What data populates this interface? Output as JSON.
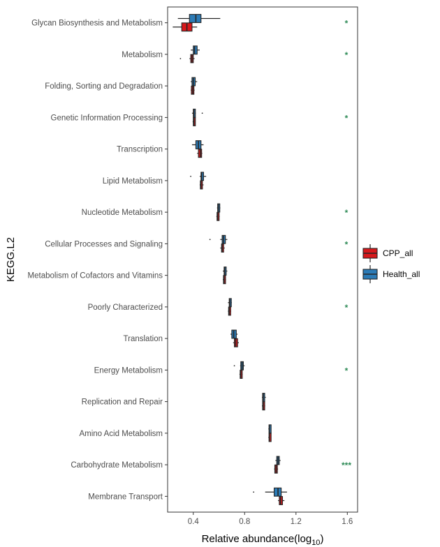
{
  "chart_data": {
    "type": "boxplot",
    "ylabel": "KEGG.L2",
    "xlabel_main": "Relative abundance(log",
    "xlabel_sub": "10",
    "xlabel_close": ")",
    "xlim": [
      0.2,
      1.68
    ],
    "xticks": [
      "0.4",
      "0.8",
      "1.2",
      "1.6"
    ],
    "xtick_values": [
      0.4,
      0.8,
      1.2,
      1.6
    ],
    "grid": false,
    "legend_position": "right",
    "significance_color": "#2e8b57",
    "series": [
      {
        "name": "CPP_all",
        "color": "#d7191c"
      },
      {
        "name": "Health_all",
        "color": "#2c7bb6"
      }
    ],
    "categories": [
      {
        "label": "Glycan Biosynthesis and Metabolism",
        "sig": "*",
        "CPP_all": {
          "min": 0.24,
          "q1": 0.31,
          "median": 0.35,
          "q3": 0.39,
          "max": 0.43,
          "outliers": []
        },
        "Health_all": {
          "min": 0.28,
          "q1": 0.37,
          "median": 0.42,
          "q3": 0.46,
          "max": 0.61,
          "outliers": []
        }
      },
      {
        "label": "Metabolism",
        "sig": "*",
        "CPP_all": {
          "min": 0.37,
          "q1": 0.38,
          "median": 0.39,
          "q3": 0.4,
          "max": 0.41,
          "outliers": [
            0.3
          ]
        },
        "Health_all": {
          "min": 0.38,
          "q1": 0.4,
          "median": 0.41,
          "q3": 0.43,
          "max": 0.45,
          "outliers": []
        }
      },
      {
        "label": "Folding, Sorting and Degradation",
        "sig": "",
        "CPP_all": {
          "min": 0.38,
          "q1": 0.385,
          "median": 0.395,
          "q3": 0.405,
          "max": 0.41,
          "outliers": []
        },
        "Health_all": {
          "min": 0.38,
          "q1": 0.39,
          "median": 0.4,
          "q3": 0.415,
          "max": 0.43,
          "outliers": []
        }
      },
      {
        "label": "Genetic Information Processing",
        "sig": "*",
        "CPP_all": {
          "min": 0.395,
          "q1": 0.4,
          "median": 0.405,
          "q3": 0.41,
          "max": 0.415,
          "outliers": []
        },
        "Health_all": {
          "min": 0.39,
          "q1": 0.4,
          "median": 0.405,
          "q3": 0.415,
          "max": 0.42,
          "outliers": [
            0.47
          ]
        }
      },
      {
        "label": "Transcription",
        "sig": "",
        "CPP_all": {
          "min": 0.43,
          "q1": 0.44,
          "median": 0.455,
          "q3": 0.465,
          "max": 0.47,
          "outliers": []
        },
        "Health_all": {
          "min": 0.39,
          "q1": 0.42,
          "median": 0.44,
          "q3": 0.46,
          "max": 0.48,
          "outliers": []
        }
      },
      {
        "label": "Lipid Metabolism",
        "sig": "",
        "CPP_all": {
          "min": 0.45,
          "q1": 0.455,
          "median": 0.46,
          "q3": 0.47,
          "max": 0.48,
          "outliers": []
        },
        "Health_all": {
          "min": 0.45,
          "q1": 0.46,
          "median": 0.465,
          "q3": 0.48,
          "max": 0.5,
          "outliers": [
            0.38
          ]
        }
      },
      {
        "label": "Nucleotide Metabolism",
        "sig": "*",
        "CPP_all": {
          "min": 0.58,
          "q1": 0.585,
          "median": 0.59,
          "q3": 0.6,
          "max": 0.605,
          "outliers": []
        },
        "Health_all": {
          "min": 0.585,
          "q1": 0.59,
          "median": 0.595,
          "q3": 0.605,
          "max": 0.61,
          "outliers": []
        }
      },
      {
        "label": "Cellular Processes and Signaling",
        "sig": "*",
        "CPP_all": {
          "min": 0.61,
          "q1": 0.62,
          "median": 0.625,
          "q3": 0.635,
          "max": 0.645,
          "outliers": []
        },
        "Health_all": {
          "min": 0.61,
          "q1": 0.625,
          "median": 0.635,
          "q3": 0.65,
          "max": 0.665,
          "outliers": [
            0.53
          ]
        }
      },
      {
        "label": "Metabolism of Cofactors and Vitamins",
        "sig": "",
        "CPP_all": {
          "min": 0.63,
          "q1": 0.635,
          "median": 0.64,
          "q3": 0.65,
          "max": 0.655,
          "outliers": []
        },
        "Health_all": {
          "min": 0.63,
          "q1": 0.64,
          "median": 0.645,
          "q3": 0.655,
          "max": 0.665,
          "outliers": []
        }
      },
      {
        "label": "Poorly Characterized",
        "sig": "*",
        "CPP_all": {
          "min": 0.67,
          "q1": 0.675,
          "median": 0.68,
          "q3": 0.69,
          "max": 0.695,
          "outliers": []
        },
        "Health_all": {
          "min": 0.67,
          "q1": 0.68,
          "median": 0.685,
          "q3": 0.695,
          "max": 0.7,
          "outliers": []
        }
      },
      {
        "label": "Translation",
        "sig": "",
        "CPP_all": {
          "min": 0.71,
          "q1": 0.72,
          "median": 0.73,
          "q3": 0.745,
          "max": 0.755,
          "outliers": []
        },
        "Health_all": {
          "min": 0.69,
          "q1": 0.7,
          "median": 0.715,
          "q3": 0.735,
          "max": 0.745,
          "outliers": []
        }
      },
      {
        "label": "Energy Metabolism",
        "sig": "*",
        "CPP_all": {
          "min": 0.76,
          "q1": 0.765,
          "median": 0.77,
          "q3": 0.78,
          "max": 0.785,
          "outliers": []
        },
        "Health_all": {
          "min": 0.765,
          "q1": 0.77,
          "median": 0.78,
          "q3": 0.79,
          "max": 0.8,
          "outliers": [
            0.72
          ]
        }
      },
      {
        "label": "Replication and Repair",
        "sig": "",
        "CPP_all": {
          "min": 0.935,
          "q1": 0.94,
          "median": 0.945,
          "q3": 0.955,
          "max": 0.96,
          "outliers": []
        },
        "Health_all": {
          "min": 0.935,
          "q1": 0.94,
          "median": 0.945,
          "q3": 0.955,
          "max": 0.965,
          "outliers": []
        }
      },
      {
        "label": "Amino Acid Metabolism",
        "sig": "",
        "CPP_all": {
          "min": 0.985,
          "q1": 0.99,
          "median": 0.993,
          "q3": 0.998,
          "max": 1.0,
          "outliers": []
        },
        "Health_all": {
          "min": 0.985,
          "q1": 0.99,
          "median": 0.993,
          "q3": 0.998,
          "max": 1.0,
          "outliers": []
        }
      },
      {
        "label": "Carbohydrate Metabolism",
        "sig": "***",
        "CPP_all": {
          "min": 1.03,
          "q1": 1.035,
          "median": 1.045,
          "q3": 1.055,
          "max": 1.06,
          "outliers": []
        },
        "Health_all": {
          "min": 1.04,
          "q1": 1.05,
          "median": 1.06,
          "q3": 1.07,
          "max": 1.08,
          "outliers": []
        }
      },
      {
        "label": "Membrane Transport",
        "sig": "",
        "CPP_all": {
          "min": 1.06,
          "q1": 1.07,
          "median": 1.08,
          "q3": 1.095,
          "max": 1.11,
          "outliers": []
        },
        "Health_all": {
          "min": 0.96,
          "q1": 1.03,
          "median": 1.06,
          "q3": 1.085,
          "max": 1.13,
          "outliers": [
            0.87
          ]
        }
      }
    ]
  }
}
